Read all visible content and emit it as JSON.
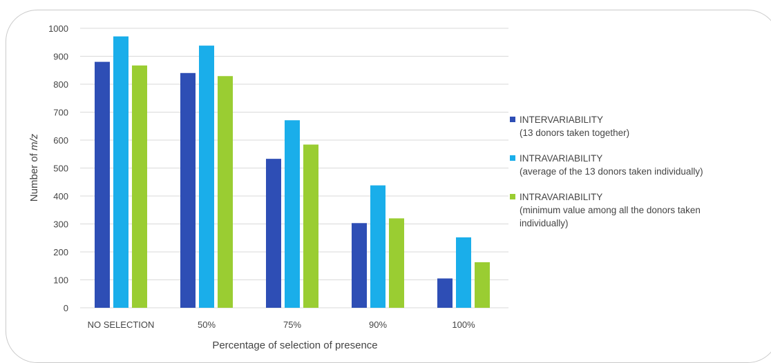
{
  "chart_data": {
    "type": "bar",
    "categories": [
      "NO SELECTION",
      "50%",
      "75%",
      "90%",
      "100%"
    ],
    "series": [
      {
        "name": "INTERVARIABILITY",
        "detail": "(13 donors taken together)",
        "color": "#2e4eb5",
        "values": [
          880,
          840,
          533,
          303,
          105
        ]
      },
      {
        "name": "INTRAVARIABILITY",
        "detail": "(average of the 13 donors taken individually)",
        "color": "#1aaeea",
        "values": [
          971,
          938,
          671,
          438,
          252
        ]
      },
      {
        "name": "INTRAVARIABILITY",
        "detail_lines": [
          "(minimum value among all the donors taken",
          "individually)"
        ],
        "color": "#9acd32",
        "values": [
          867,
          829,
          584,
          320,
          163
        ]
      }
    ],
    "xlabel": "Percentage of selection of presence",
    "ylabel_prefix": "Number of ",
    "ylabel_italic": "m/z",
    "ylim": [
      0,
      1000
    ],
    "yticks": [
      "0",
      "100",
      "200",
      "300",
      "400",
      "500",
      "600",
      "700",
      "800",
      "900",
      "1000"
    ],
    "grid": true,
    "grid_color": "#d9d9d9",
    "legend_position": "right"
  }
}
